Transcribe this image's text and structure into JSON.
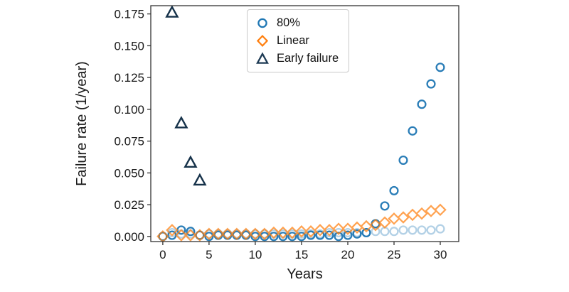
{
  "figure": {
    "background": "#ffffff",
    "text_color": "#1a1a1a",
    "spine_color": "#333333"
  },
  "chart_data": {
    "type": "scatter",
    "title": "",
    "xlabel": "Years",
    "ylabel": "Failure rate (1/year)",
    "xlim": [
      -1.3,
      32.0
    ],
    "ylim": [
      -0.004,
      0.1815
    ],
    "x_ticks": [
      0,
      5,
      10,
      15,
      20,
      25,
      30
    ],
    "y_ticks": [
      0.0,
      0.025,
      0.05,
      0.075,
      0.1,
      0.125,
      0.15,
      0.175
    ],
    "y_tick_decimals": 3,
    "grid": false,
    "x": [
      0,
      1,
      2,
      3,
      4,
      5,
      6,
      7,
      8,
      9,
      10,
      11,
      12,
      13,
      14,
      15,
      16,
      17,
      18,
      19,
      20,
      21,
      22,
      23,
      24,
      25,
      26,
      27,
      28,
      29,
      30
    ],
    "legend": {
      "position": "upper-center-inside",
      "entries": [
        {
          "label": "80%",
          "marker": "circle",
          "color": "#1f77b4"
        },
        {
          "label": "Linear",
          "marker": "diamond",
          "color": "#ff7f0e"
        },
        {
          "label": "Early failure",
          "marker": "triangle",
          "color": "#1d3a54"
        }
      ]
    },
    "series": [
      {
        "name": "",
        "marker": "circle",
        "color": "#b3d1e6",
        "opacity": 1,
        "y": [
          0.0,
          0.003,
          0.002,
          0.002,
          0.001,
          0.002,
          0.002,
          0.002,
          0.002,
          0.002,
          0.002,
          0.002,
          0.002,
          0.002,
          0.002,
          0.002,
          0.002,
          0.002,
          0.003,
          0.003,
          0.003,
          0.003,
          0.003,
          0.004,
          0.004,
          0.004,
          0.005,
          0.005,
          0.005,
          0.005,
          0.006
        ]
      },
      {
        "name": "80%",
        "marker": "circle",
        "color": "#1f77b4",
        "opacity": 0.95,
        "y": [
          0.0,
          0.001,
          0.005,
          0.004,
          0.001,
          0.0,
          0.001,
          0.001,
          0.001,
          0.001,
          0.0,
          0.0,
          0.0,
          0.0,
          0.0,
          0.0,
          0.001,
          0.001,
          0.001,
          0.0,
          0.001,
          0.002,
          0.003,
          0.01,
          0.024,
          0.036,
          0.06,
          0.083,
          0.104,
          0.12,
          0.133
        ]
      },
      {
        "name": "Linear",
        "marker": "diamond",
        "color": "#ff7f0e",
        "opacity": 0.72,
        "y": [
          0.0,
          0.005,
          0.001,
          0.001,
          0.001,
          0.002,
          0.002,
          0.002,
          0.002,
          0.002,
          0.002,
          0.002,
          0.003,
          0.003,
          0.003,
          0.004,
          0.004,
          0.005,
          0.005,
          0.006,
          0.006,
          0.007,
          0.008,
          0.009,
          0.011,
          0.014,
          0.015,
          0.017,
          0.018,
          0.02,
          0.021
        ]
      },
      {
        "name": "Early failure",
        "marker": "triangle",
        "color": "#16324a",
        "opacity": 1,
        "x": [
          1,
          2,
          3,
          4
        ],
        "y": [
          0.176,
          0.089,
          0.058,
          0.044
        ]
      }
    ]
  }
}
